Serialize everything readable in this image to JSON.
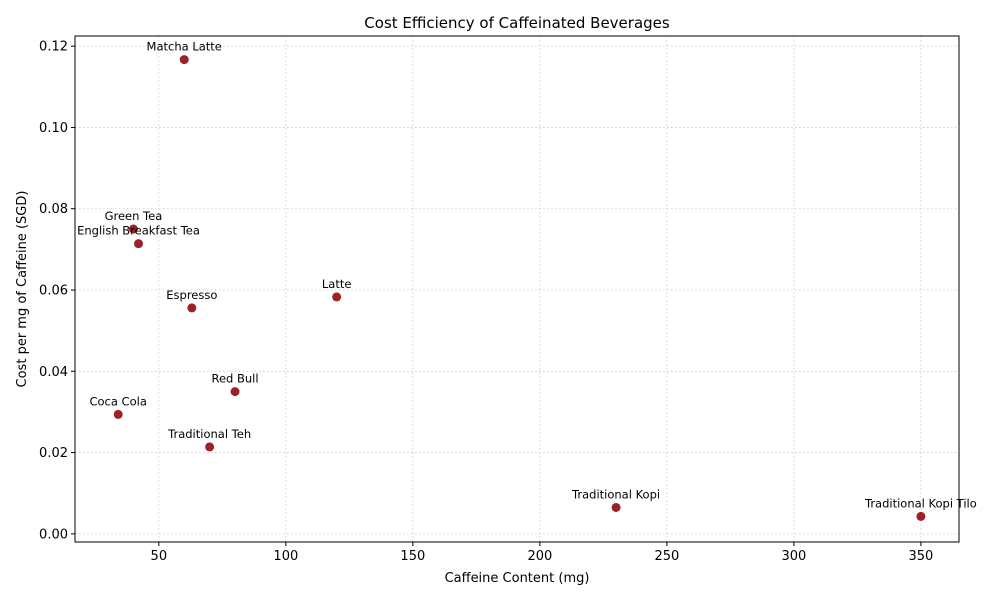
{
  "chart_data": {
    "type": "scatter",
    "title": "Cost Efficiency of Caffeinated Beverages",
    "xlabel": "Caffeine Content (mg)",
    "ylabel": "Cost per mg of Caffeine (SGD)",
    "xlim": [
      17,
      365
    ],
    "ylim": [
      -0.002,
      0.1225
    ],
    "xticks": [
      50,
      100,
      150,
      200,
      250,
      300,
      350
    ],
    "xtick_labels": [
      "50",
      "100",
      "150",
      "200",
      "250",
      "300",
      "350"
    ],
    "yticks": [
      0.0,
      0.02,
      0.04,
      0.06,
      0.08,
      0.1,
      0.12
    ],
    "ytick_labels": [
      "0.00",
      "0.02",
      "0.04",
      "0.06",
      "0.08",
      "0.10",
      "0.12"
    ],
    "grid": true,
    "marker_color": "#9b2226",
    "points": [
      {
        "label": "Matcha Latte",
        "x": 60,
        "y": 0.1167
      },
      {
        "label": "Green Tea",
        "x": 40,
        "y": 0.075
      },
      {
        "label": "English Breakfast Tea",
        "x": 42,
        "y": 0.0714
      },
      {
        "label": "Latte",
        "x": 120,
        "y": 0.0583
      },
      {
        "label": "Espresso",
        "x": 63,
        "y": 0.0556
      },
      {
        "label": "Red Bull",
        "x": 80,
        "y": 0.035
      },
      {
        "label": "Coca Cola",
        "x": 34,
        "y": 0.0294
      },
      {
        "label": "Traditional Teh",
        "x": 70,
        "y": 0.0214
      },
      {
        "label": "Traditional Kopi",
        "x": 230,
        "y": 0.0065
      },
      {
        "label": "Traditional Kopi Tilo",
        "x": 350,
        "y": 0.0043
      }
    ]
  }
}
